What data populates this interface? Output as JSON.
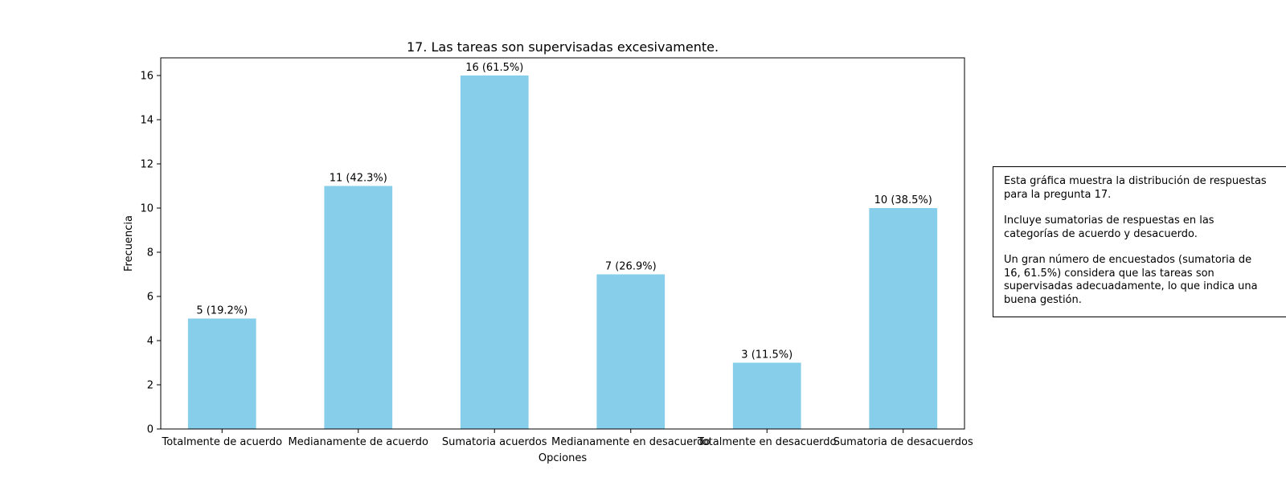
{
  "chart_data": {
    "type": "bar",
    "title": "17. Las tareas son supervisadas excesivamente.",
    "xlabel": "Opciones",
    "ylabel": "Frecuencia",
    "categories": [
      "Totalmente de acuerdo",
      "Medianamente de acuerdo",
      "Sumatoria acuerdos",
      "Medianamente en desacuerdo",
      "Totalmente en desacuerdo",
      "Sumatoria de desacuerdos"
    ],
    "values": [
      5,
      11,
      16,
      7,
      3,
      10
    ],
    "data_labels": [
      "5 (19.2%)",
      "11 (42.3%)",
      "16 (61.5%)",
      "7 (26.9%)",
      "3 (11.5%)",
      "10 (38.5%)"
    ],
    "ylim": [
      0,
      16.8
    ],
    "yticks": [
      0,
      2,
      4,
      6,
      8,
      10,
      12,
      14,
      16
    ],
    "grid": false,
    "bar_color": "#87CEEB"
  },
  "annotation": {
    "paragraphs": [
      "Esta gráfica muestra la distribución de respuestas\npara la pregunta 17.",
      "Incluye sumatorias de respuestas en las\ncategorías de acuerdo y desacuerdo.",
      "Un gran número de encuestados (sumatoria de\n16, 61.5%) considera que las tareas son\nsupervisadas adecuadamente, lo que indica una\nbuena gestión."
    ]
  }
}
